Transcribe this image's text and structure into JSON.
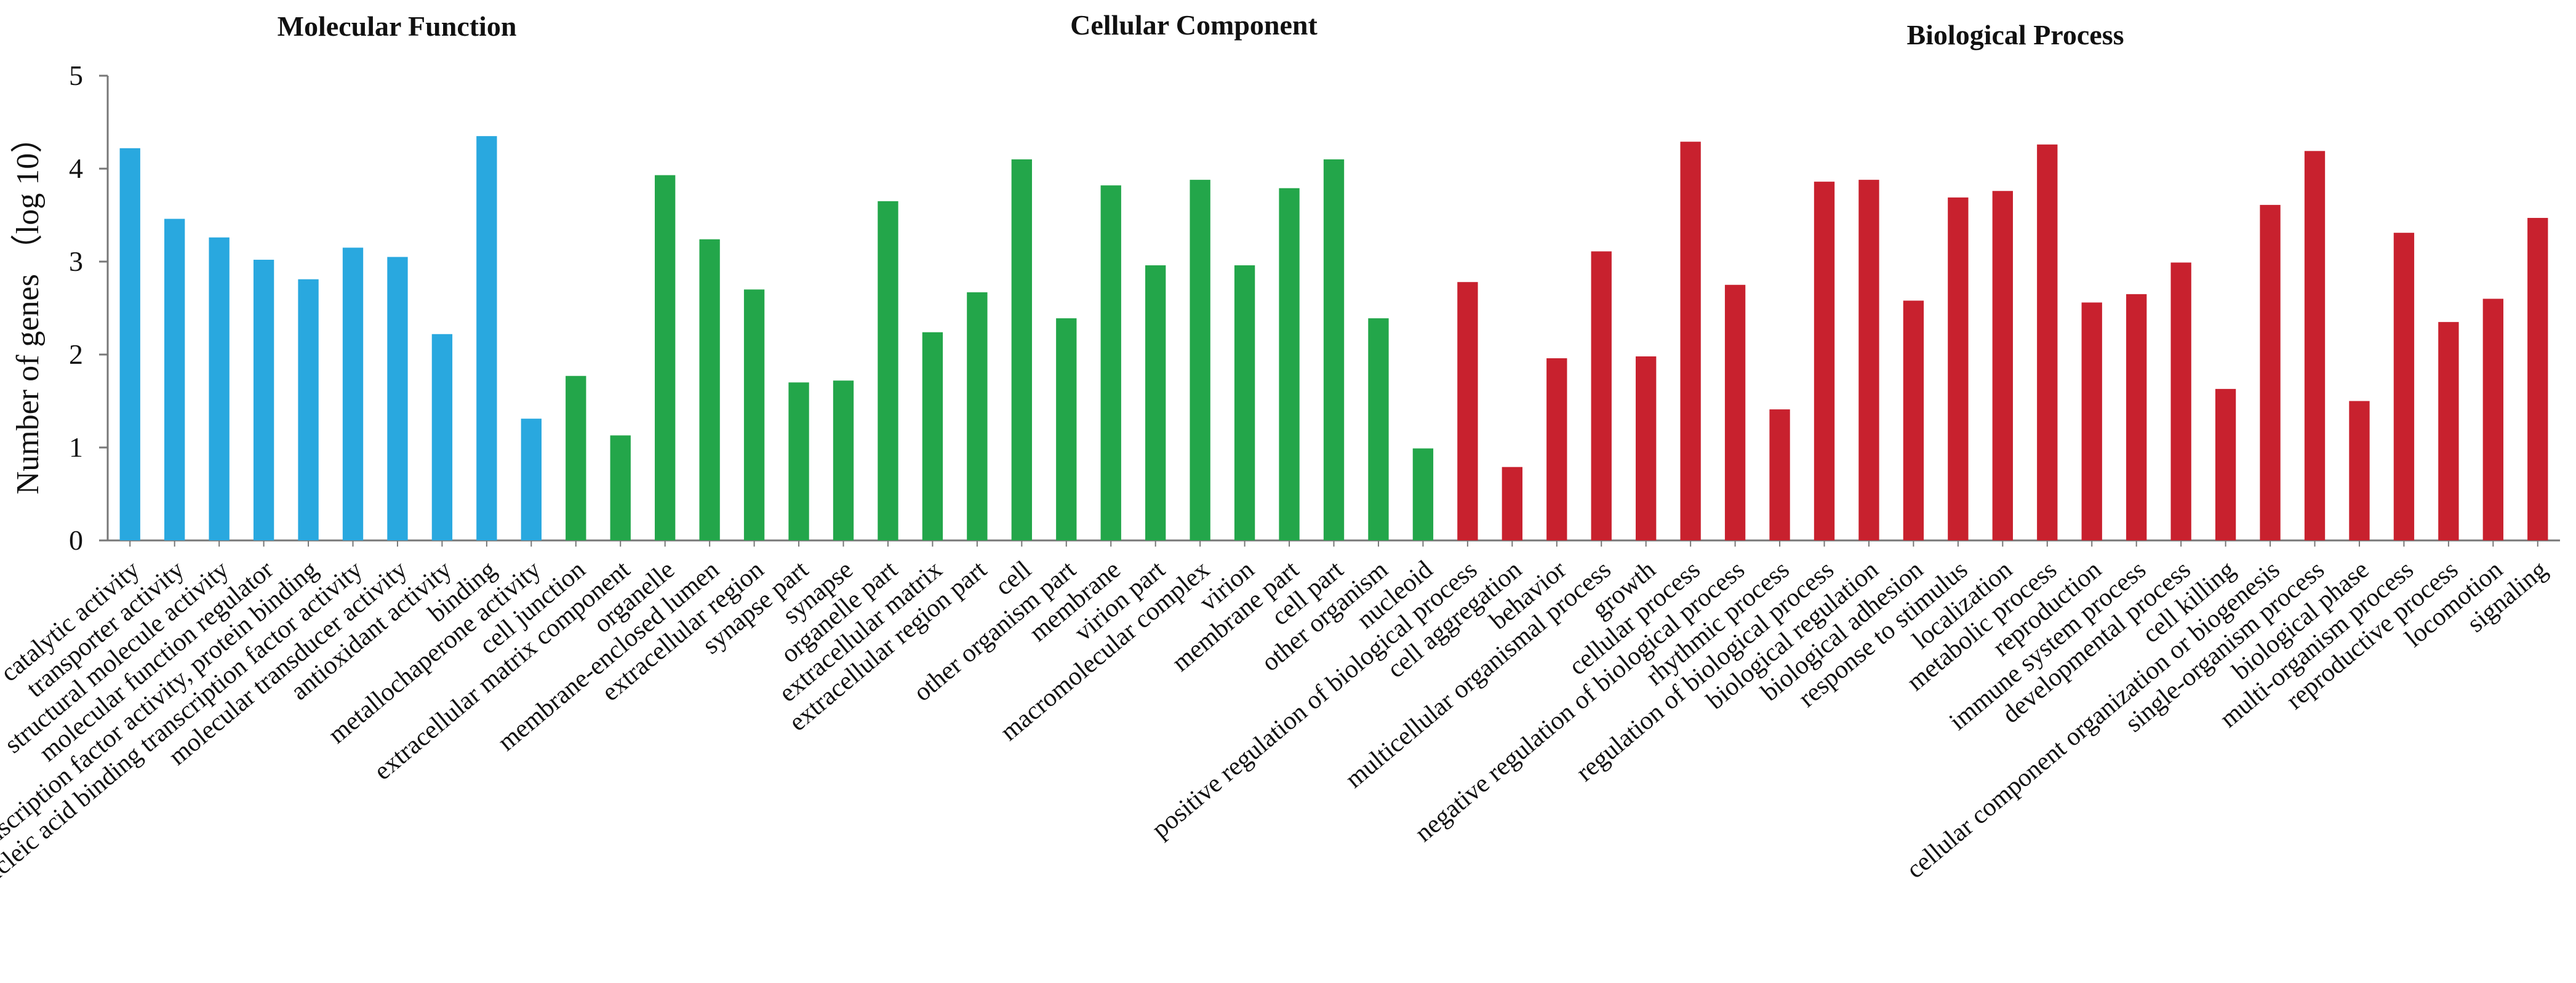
{
  "chart_data": {
    "type": "bar",
    "ylabel": "Number of genes （log 10）",
    "ylim": [
      0,
      5
    ],
    "yticks": [
      "0",
      "1",
      "2",
      "3",
      "4",
      "5"
    ],
    "grid": false,
    "legend": "none",
    "groups": [
      {
        "name": "Molecular Function",
        "color": "#29a8df",
        "categories": [
          "catalytic activity",
          "transporter activity",
          "structural molecule activity",
          "molecular function regulator",
          "transcription factor activity, protein binding",
          "nucleic acid binding transcription factor activity",
          "molecular transducer activity",
          "antioxidant activity",
          "binding",
          "metallochaperone activity"
        ],
        "values": [
          4.22,
          3.46,
          3.26,
          3.02,
          2.81,
          3.15,
          3.05,
          2.22,
          4.35,
          1.31
        ]
      },
      {
        "name": "Cellular Component",
        "color": "#23a64a",
        "categories": [
          "cell junction",
          "extracellular matrix component",
          "organelle",
          "membrane-enclosed lumen",
          "extracellular region",
          "synapse part",
          "synapse",
          "organelle part",
          "extracellular matrix",
          "extracellular region part",
          "cell",
          "other organism part",
          "membrane",
          "virion part",
          "macromolecular complex",
          "virion",
          "membrane part",
          "cell part",
          "other organism",
          "nucleoid"
        ],
        "values": [
          1.77,
          1.13,
          3.93,
          3.24,
          2.7,
          1.7,
          1.72,
          3.65,
          2.24,
          2.67,
          4.1,
          2.39,
          3.82,
          2.96,
          3.88,
          2.96,
          3.79,
          4.1,
          2.39,
          0.99
        ]
      },
      {
        "name": "Biological Process",
        "color": "#c8212e",
        "categories": [
          "positive regulation of biological process",
          "cell aggregation",
          "behavior",
          "multicellular organismal process",
          "growth",
          "cellular process",
          "negative regulation of biological process",
          "rhythmic process",
          "regulation of biological process",
          "biological regulation",
          "biological adhesion",
          "response to stimulus",
          "localization",
          "metabolic process",
          "reproduction",
          "immune system process",
          "developmental process",
          "cell killing",
          "cellular component organization or biogenesis",
          "single-organism process",
          "biological phase",
          "multi-organism process",
          "reproductive process",
          "locomotion",
          "signaling"
        ],
        "values": [
          2.78,
          0.79,
          1.96,
          3.11,
          1.98,
          4.29,
          2.75,
          1.41,
          3.86,
          3.88,
          2.58,
          3.69,
          3.76,
          4.26,
          2.56,
          2.65,
          2.99,
          1.63,
          3.61,
          4.19,
          1.5,
          3.31,
          2.35,
          2.6,
          3.47
        ]
      }
    ]
  }
}
